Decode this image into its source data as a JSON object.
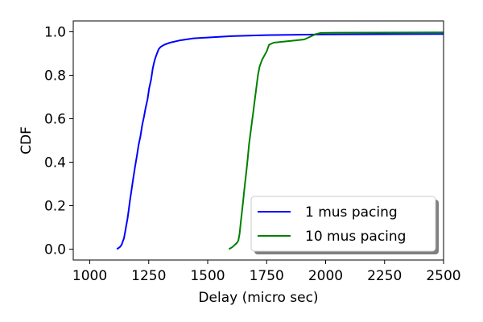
{
  "chart_data": {
    "type": "line",
    "title": "",
    "xlabel": "Delay (micro sec)",
    "ylabel": "CDF",
    "xlim": [
      930,
      2500
    ],
    "ylim": [
      -0.05,
      1.05
    ],
    "xticks": [
      1000,
      1250,
      1500,
      1750,
      2000,
      2250,
      2500
    ],
    "yticks": [
      0.0,
      0.2,
      0.4,
      0.6,
      0.8,
      1.0
    ],
    "grid": false,
    "legend_position": "lower right",
    "series": [
      {
        "name": "1 mus pacing",
        "color": "#0000ff",
        "points": [
          [
            1115,
            0.0
          ],
          [
            1128,
            0.01
          ],
          [
            1135,
            0.02
          ],
          [
            1140,
            0.035
          ],
          [
            1145,
            0.05
          ],
          [
            1150,
            0.08
          ],
          [
            1155,
            0.11
          ],
          [
            1160,
            0.14
          ],
          [
            1165,
            0.18
          ],
          [
            1170,
            0.22
          ],
          [
            1178,
            0.28
          ],
          [
            1185,
            0.33
          ],
          [
            1192,
            0.38
          ],
          [
            1200,
            0.43
          ],
          [
            1207,
            0.48
          ],
          [
            1215,
            0.52
          ],
          [
            1222,
            0.57
          ],
          [
            1230,
            0.61
          ],
          [
            1237,
            0.65
          ],
          [
            1245,
            0.69
          ],
          [
            1252,
            0.74
          ],
          [
            1260,
            0.78
          ],
          [
            1267,
            0.83
          ],
          [
            1273,
            0.86
          ],
          [
            1278,
            0.88
          ],
          [
            1285,
            0.9
          ],
          [
            1292,
            0.92
          ],
          [
            1300,
            0.93
          ],
          [
            1315,
            0.94
          ],
          [
            1340,
            0.95
          ],
          [
            1380,
            0.96
          ],
          [
            1440,
            0.97
          ],
          [
            1520,
            0.975
          ],
          [
            1600,
            0.98
          ],
          [
            1750,
            0.985
          ],
          [
            2000,
            0.988
          ],
          [
            2500,
            0.99
          ]
        ]
      },
      {
        "name": "10 mus pacing",
        "color": "#008000",
        "points": [
          [
            1590,
            0.0
          ],
          [
            1605,
            0.01
          ],
          [
            1615,
            0.02
          ],
          [
            1625,
            0.03
          ],
          [
            1630,
            0.04
          ],
          [
            1635,
            0.07
          ],
          [
            1640,
            0.12
          ],
          [
            1645,
            0.17
          ],
          [
            1650,
            0.22
          ],
          [
            1655,
            0.27
          ],
          [
            1660,
            0.32
          ],
          [
            1665,
            0.37
          ],
          [
            1670,
            0.42
          ],
          [
            1675,
            0.48
          ],
          [
            1680,
            0.52
          ],
          [
            1687,
            0.58
          ],
          [
            1693,
            0.63
          ],
          [
            1700,
            0.69
          ],
          [
            1707,
            0.75
          ],
          [
            1713,
            0.8
          ],
          [
            1720,
            0.84
          ],
          [
            1730,
            0.87
          ],
          [
            1740,
            0.89
          ],
          [
            1750,
            0.91
          ],
          [
            1760,
            0.94
          ],
          [
            1780,
            0.95
          ],
          [
            1820,
            0.955
          ],
          [
            1870,
            0.96
          ],
          [
            1910,
            0.965
          ],
          [
            1940,
            0.98
          ],
          [
            1960,
            0.99
          ],
          [
            1980,
            0.995
          ],
          [
            2050,
            0.996
          ],
          [
            2500,
            0.997
          ]
        ]
      }
    ]
  }
}
